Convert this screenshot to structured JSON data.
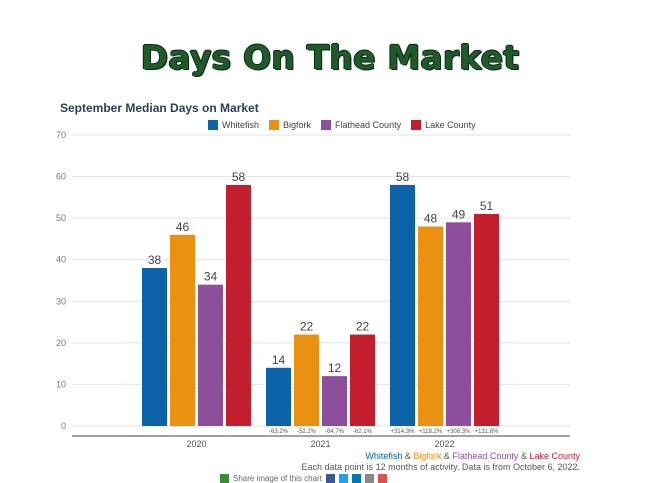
{
  "page": {
    "title": "Days On The Market"
  },
  "chart_data": {
    "type": "bar",
    "title": "September Median Days on Market",
    "categories": [
      "2020",
      "2021",
      "2022"
    ],
    "series": [
      {
        "name": "Whitefish",
        "color": "#0b63a8",
        "values": [
          38,
          14,
          58
        ]
      },
      {
        "name": "Bigfork",
        "color": "#ea9111",
        "values": [
          46,
          22,
          48
        ]
      },
      {
        "name": "Flathead County",
        "color": "#8d4f9c",
        "values": [
          34,
          12,
          49
        ]
      },
      {
        "name": "Lake County",
        "color": "#c21e2e",
        "values": [
          58,
          22,
          51
        ]
      }
    ],
    "change_labels": [
      [],
      [
        "-63.2%",
        "-52.2%",
        "-64.7%",
        "-62.1%"
      ],
      [
        "+314.3%",
        "+118.2%",
        "+308.3%",
        "+131.8%"
      ]
    ],
    "ylim": [
      0,
      70
    ],
    "yticks": [
      0,
      10,
      20,
      30,
      40,
      50,
      60,
      70
    ],
    "grid": true,
    "legend_position": "top"
  },
  "footer": {
    "series_names": [
      "Whitefish",
      "Bigfork",
      "Flathead County",
      "Lake County"
    ],
    "separator": "&",
    "note": "Each data point is 12 months of activity. Data is from October 6, 2022."
  },
  "share": {
    "text": "Share image of this chart",
    "icons": [
      "share-icon",
      "facebook-icon",
      "twitter-icon",
      "linkedin-icon",
      "email-icon",
      "link-icon"
    ]
  }
}
